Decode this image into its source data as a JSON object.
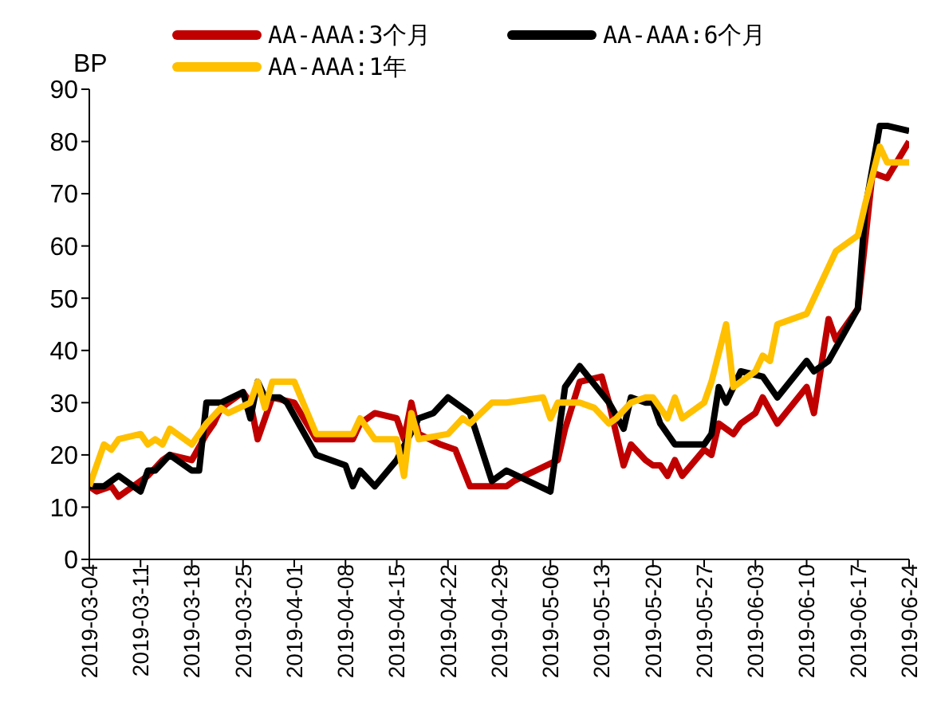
{
  "chart_data": {
    "type": "line",
    "ylabel": "BP",
    "legend": "top",
    "grid": false,
    "marker": "none",
    "line_style": "solid",
    "xlim": [
      "2019-03-04",
      "2019-06-24"
    ],
    "xticks": [
      "2019-03-04",
      "2019-03-11",
      "2019-03-18",
      "2019-03-25",
      "2019-04-01",
      "2019-04-08",
      "2019-04-15",
      "2019-04-22",
      "2019-04-29",
      "2019-05-06",
      "2019-05-13",
      "2019-05-20",
      "2019-05-27",
      "2019-06-03",
      "2019-06-10",
      "2019-06-17",
      "2019-06-24"
    ],
    "ylim": [
      0,
      90
    ],
    "yticks": [
      0,
      10,
      20,
      30,
      40,
      50,
      60,
      70,
      80,
      90
    ],
    "series": [
      {
        "name": "AA-AAA:3个月",
        "color": "#c00000",
        "x": [
          "2019-03-04",
          "2019-03-05",
          "2019-03-07",
          "2019-03-08",
          "2019-03-10",
          "2019-03-12",
          "2019-03-14",
          "2019-03-15",
          "2019-03-18",
          "2019-03-20",
          "2019-03-21",
          "2019-03-22",
          "2019-03-25",
          "2019-03-26",
          "2019-03-27",
          "2019-03-29",
          "2019-04-01",
          "2019-04-04",
          "2019-04-09",
          "2019-04-10",
          "2019-04-12",
          "2019-04-15",
          "2019-04-16",
          "2019-04-17",
          "2019-04-18",
          "2019-04-21",
          "2019-04-23",
          "2019-04-25",
          "2019-04-26",
          "2019-04-28",
          "2019-04-30",
          "2019-05-01",
          "2019-05-07",
          "2019-05-08",
          "2019-05-10",
          "2019-05-13",
          "2019-05-14",
          "2019-05-16",
          "2019-05-17",
          "2019-05-19",
          "2019-05-20",
          "2019-05-21",
          "2019-05-22",
          "2019-05-23",
          "2019-05-24",
          "2019-05-27",
          "2019-05-28",
          "2019-05-29",
          "2019-05-31",
          "2019-06-01",
          "2019-06-03",
          "2019-06-04",
          "2019-06-06",
          "2019-06-10",
          "2019-06-11",
          "2019-06-13",
          "2019-06-14",
          "2019-06-17",
          "2019-06-19",
          "2019-06-21",
          "2019-06-24"
        ],
        "values": [
          14,
          13,
          14,
          12,
          14,
          16,
          19,
          20,
          19,
          24,
          26,
          29,
          32,
          30,
          23,
          31,
          30,
          23,
          23,
          26,
          28,
          27,
          23,
          30,
          24,
          22,
          21,
          14,
          14,
          14,
          14,
          15,
          19,
          25,
          34,
          35,
          30,
          18,
          22,
          19,
          18,
          18,
          16,
          19,
          16,
          21,
          20,
          26,
          24,
          26,
          28,
          31,
          26,
          33,
          28,
          46,
          42,
          48,
          74,
          73,
          80
        ]
      },
      {
        "name": "AA-AAA:6个月",
        "color": "#000000",
        "x": [
          "2019-03-04",
          "2019-03-06",
          "2019-03-08",
          "2019-03-11",
          "2019-03-12",
          "2019-03-13",
          "2019-03-15",
          "2019-03-18",
          "2019-03-19",
          "2019-03-20",
          "2019-03-22",
          "2019-03-25",
          "2019-03-26",
          "2019-03-27",
          "2019-03-28",
          "2019-03-30",
          "2019-03-31",
          "2019-04-04",
          "2019-04-08",
          "2019-04-09",
          "2019-04-10",
          "2019-04-12",
          "2019-04-15",
          "2019-04-18",
          "2019-04-20",
          "2019-04-22",
          "2019-04-25",
          "2019-04-28",
          "2019-04-30",
          "2019-05-06",
          "2019-05-08",
          "2019-05-10",
          "2019-05-14",
          "2019-05-16",
          "2019-05-17",
          "2019-05-19",
          "2019-05-20",
          "2019-05-21",
          "2019-05-23",
          "2019-05-27",
          "2019-05-28",
          "2019-05-29",
          "2019-05-30",
          "2019-06-01",
          "2019-06-04",
          "2019-06-06",
          "2019-06-10",
          "2019-06-11",
          "2019-06-13",
          "2019-06-17",
          "2019-06-18",
          "2019-06-20",
          "2019-06-21",
          "2019-06-24"
        ],
        "values": [
          14,
          14,
          16,
          13,
          17,
          17,
          20,
          17,
          17,
          30,
          30,
          32,
          27,
          34,
          31,
          31,
          30,
          20,
          18,
          14,
          17,
          14,
          19,
          27,
          28,
          31,
          28,
          15,
          17,
          13,
          33,
          37,
          30,
          25,
          31,
          30,
          30,
          26,
          22,
          22,
          24,
          33,
          30,
          36,
          35,
          31,
          38,
          36,
          38,
          48,
          67,
          83,
          83,
          82
        ]
      },
      {
        "name": "AA-AAA:1年",
        "color": "#ffc000",
        "x": [
          "2019-03-04",
          "2019-03-06",
          "2019-03-07",
          "2019-03-08",
          "2019-03-11",
          "2019-03-12",
          "2019-03-13",
          "2019-03-14",
          "2019-03-15",
          "2019-03-18",
          "2019-03-20",
          "2019-03-22",
          "2019-03-23",
          "2019-03-26",
          "2019-03-27",
          "2019-03-28",
          "2019-03-29",
          "2019-04-01",
          "2019-04-04",
          "2019-04-09",
          "2019-04-10",
          "2019-04-12",
          "2019-04-15",
          "2019-04-16",
          "2019-04-17",
          "2019-04-18",
          "2019-04-22",
          "2019-04-24",
          "2019-04-25",
          "2019-04-28",
          "2019-04-30",
          "2019-05-05",
          "2019-05-06",
          "2019-05-07",
          "2019-05-10",
          "2019-05-12",
          "2019-05-14",
          "2019-05-15",
          "2019-05-17",
          "2019-05-19",
          "2019-05-20",
          "2019-05-22",
          "2019-05-23",
          "2019-05-24",
          "2019-05-27",
          "2019-05-28",
          "2019-05-30",
          "2019-05-31",
          "2019-06-03",
          "2019-06-04",
          "2019-06-05",
          "2019-06-06",
          "2019-06-10",
          "2019-06-13",
          "2019-06-14",
          "2019-06-17",
          "2019-06-18",
          "2019-06-20",
          "2019-06-21",
          "2019-06-24"
        ],
        "values": [
          14,
          22,
          21,
          23,
          24,
          22,
          23,
          22,
          25,
          22,
          26,
          29,
          28,
          30,
          34,
          29,
          34,
          34,
          24,
          24,
          27,
          23,
          23,
          16,
          28,
          23,
          24,
          27,
          26,
          30,
          30,
          31,
          27,
          30,
          30,
          29,
          26,
          27,
          30,
          31,
          31,
          27,
          31,
          27,
          30,
          34,
          45,
          33,
          36,
          39,
          38,
          45,
          47,
          56,
          59,
          62,
          68,
          79,
          76,
          76
        ]
      }
    ]
  }
}
